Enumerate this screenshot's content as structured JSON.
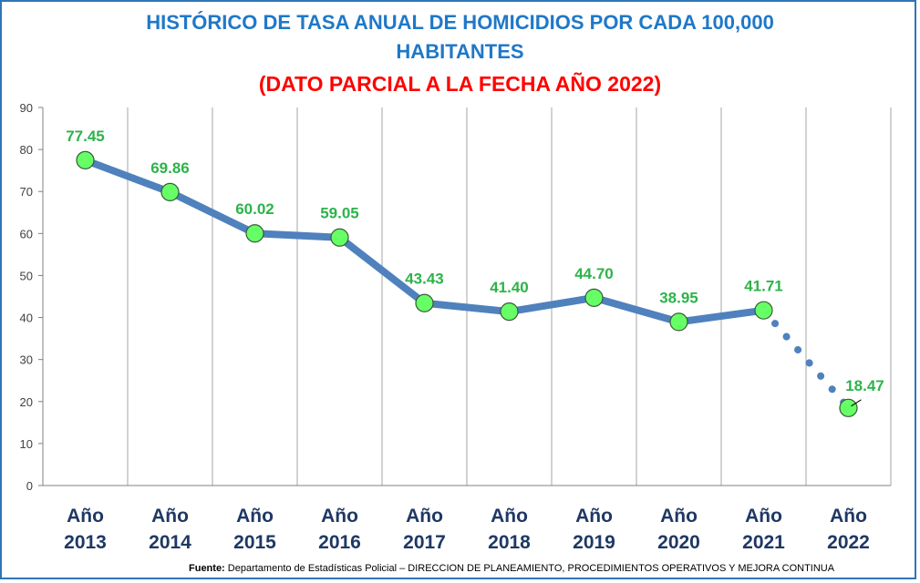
{
  "chart_data": {
    "type": "line",
    "title_line1": "HISTÓRICO DE TASA ANUAL DE HOMICIDIOS POR CADA 100,000",
    "title_line2": "HABITANTES",
    "subtitle": "(DATO PARCIAL A LA FECHA AÑO 2022)",
    "categories": [
      [
        "Año",
        "2013"
      ],
      [
        "Año",
        "2014"
      ],
      [
        "Año",
        "2015"
      ],
      [
        "Año",
        "2016"
      ],
      [
        "Año",
        "2017"
      ],
      [
        "Año",
        "2018"
      ],
      [
        "Año",
        "2019"
      ],
      [
        "Año",
        "2020"
      ],
      [
        "Año",
        "2021"
      ],
      [
        "Año",
        "2022"
      ]
    ],
    "values": [
      77.45,
      69.86,
      60.02,
      59.05,
      43.43,
      41.4,
      44.7,
      38.95,
      41.71,
      18.47
    ],
    "value_labels": [
      "77.45",
      "69.86",
      "60.02",
      "59.05",
      "43.43",
      "41.40",
      "44.70",
      "38.95",
      "41.71",
      "18.47"
    ],
    "y_ticks": [
      0,
      10,
      20,
      30,
      40,
      50,
      60,
      70,
      80,
      90
    ],
    "ylim": [
      0,
      90
    ],
    "partial_last_segment": true,
    "grid": "vertical",
    "colors": {
      "line": "#4f81bd",
      "marker": "#66ff66",
      "value_label": "#2db34a",
      "category_label": "#1f3864",
      "title": "#1f78c8",
      "subtitle": "#ff0000"
    }
  },
  "footer": {
    "label": "Fuente:",
    "text": " Departamento de Estadísticas Policial – DIRECCION DE PLANEAMIENTO, PROCEDIMIENTOS OPERATIVOS Y MEJORA CONTINUA"
  }
}
